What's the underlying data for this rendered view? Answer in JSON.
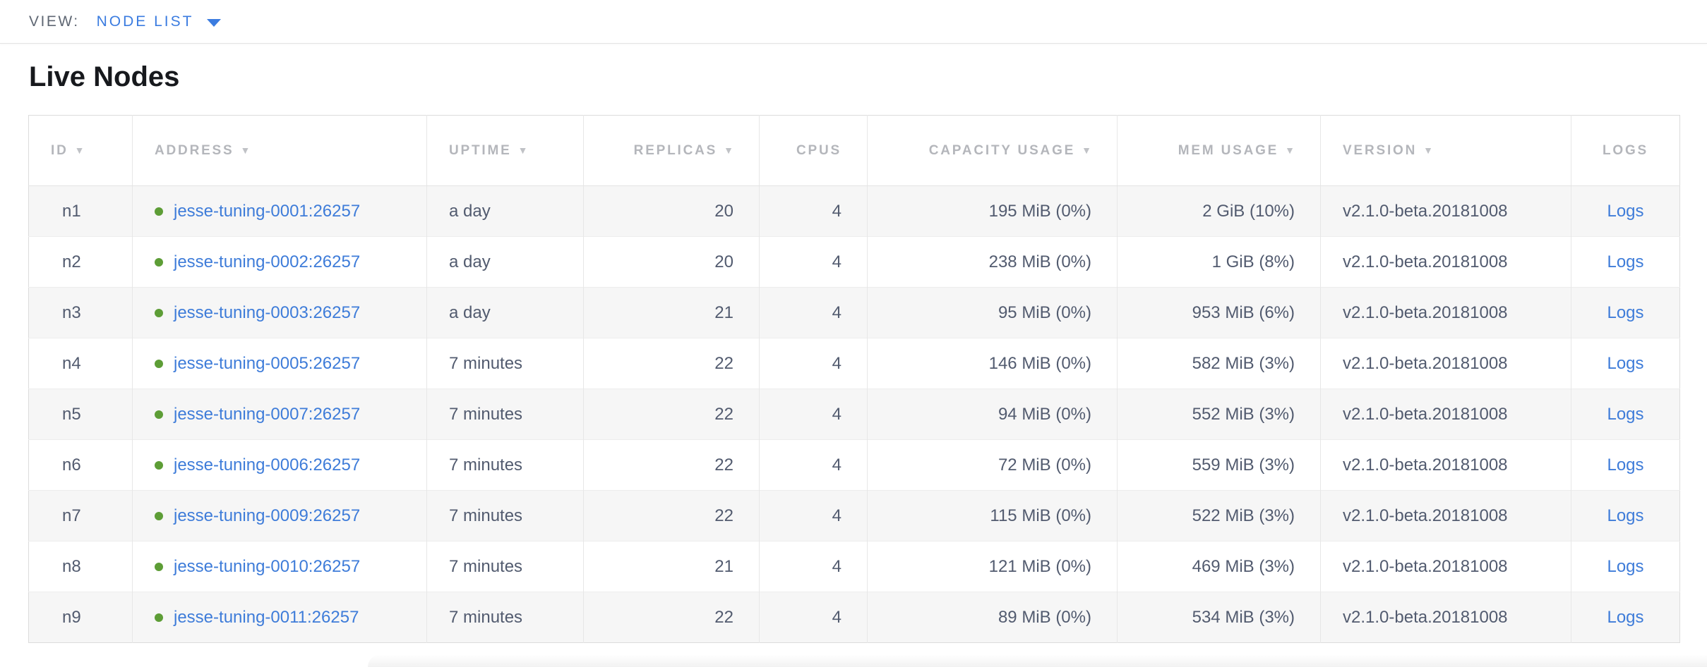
{
  "view_bar": {
    "label": "VIEW:",
    "selected": "NODE LIST"
  },
  "page": {
    "title": "Live Nodes"
  },
  "table": {
    "columns": [
      {
        "key": "id",
        "label": "ID",
        "sortable": true,
        "align": "left"
      },
      {
        "key": "address",
        "label": "ADDRESS",
        "sortable": true,
        "align": "left"
      },
      {
        "key": "uptime",
        "label": "UPTIME",
        "sortable": true,
        "align": "left"
      },
      {
        "key": "replicas",
        "label": "REPLICAS",
        "sortable": true,
        "align": "right"
      },
      {
        "key": "cpus",
        "label": "CPUS",
        "sortable": false,
        "align": "right"
      },
      {
        "key": "capacity",
        "label": "CAPACITY USAGE",
        "sortable": true,
        "align": "right"
      },
      {
        "key": "mem",
        "label": "MEM USAGE",
        "sortable": true,
        "align": "right"
      },
      {
        "key": "version",
        "label": "VERSION",
        "sortable": true,
        "align": "left"
      },
      {
        "key": "logs",
        "label": "LOGS",
        "sortable": false,
        "align": "center"
      }
    ],
    "rows": [
      {
        "id": "n1",
        "address": "jesse-tuning-0001:26257",
        "uptime": "a day",
        "replicas": "20",
        "cpus": "4",
        "capacity": "195 MiB (0%)",
        "mem": "2 GiB (10%)",
        "version": "v2.1.0-beta.20181008",
        "logs": "Logs"
      },
      {
        "id": "n2",
        "address": "jesse-tuning-0002:26257",
        "uptime": "a day",
        "replicas": "20",
        "cpus": "4",
        "capacity": "238 MiB (0%)",
        "mem": "1 GiB (8%)",
        "version": "v2.1.0-beta.20181008",
        "logs": "Logs"
      },
      {
        "id": "n3",
        "address": "jesse-tuning-0003:26257",
        "uptime": "a day",
        "replicas": "21",
        "cpus": "4",
        "capacity": "95 MiB (0%)",
        "mem": "953 MiB (6%)",
        "version": "v2.1.0-beta.20181008",
        "logs": "Logs"
      },
      {
        "id": "n4",
        "address": "jesse-tuning-0005:26257",
        "uptime": "7 minutes",
        "replicas": "22",
        "cpus": "4",
        "capacity": "146 MiB (0%)",
        "mem": "582 MiB (3%)",
        "version": "v2.1.0-beta.20181008",
        "logs": "Logs"
      },
      {
        "id": "n5",
        "address": "jesse-tuning-0007:26257",
        "uptime": "7 minutes",
        "replicas": "22",
        "cpus": "4",
        "capacity": "94 MiB (0%)",
        "mem": "552 MiB (3%)",
        "version": "v2.1.0-beta.20181008",
        "logs": "Logs"
      },
      {
        "id": "n6",
        "address": "jesse-tuning-0006:26257",
        "uptime": "7 minutes",
        "replicas": "22",
        "cpus": "4",
        "capacity": "72 MiB (0%)",
        "mem": "559 MiB (3%)",
        "version": "v2.1.0-beta.20181008",
        "logs": "Logs"
      },
      {
        "id": "n7",
        "address": "jesse-tuning-0009:26257",
        "uptime": "7 minutes",
        "replicas": "22",
        "cpus": "4",
        "capacity": "115 MiB (0%)",
        "mem": "522 MiB (3%)",
        "version": "v2.1.0-beta.20181008",
        "logs": "Logs"
      },
      {
        "id": "n8",
        "address": "jesse-tuning-0010:26257",
        "uptime": "7 minutes",
        "replicas": "21",
        "cpus": "4",
        "capacity": "121 MiB (0%)",
        "mem": "469 MiB (3%)",
        "version": "v2.1.0-beta.20181008",
        "logs": "Logs"
      },
      {
        "id": "n9",
        "address": "jesse-tuning-0011:26257",
        "uptime": "7 minutes",
        "replicas": "22",
        "cpus": "4",
        "capacity": "89 MiB (0%)",
        "mem": "534 MiB (3%)",
        "version": "v2.1.0-beta.20181008",
        "logs": "Logs"
      }
    ],
    "sort_arrow_icon": "▼"
  },
  "colors": {
    "view_accent": "#3b7ce0",
    "link_blue": "#3e7cd9",
    "live_green": "#5d9d36"
  }
}
